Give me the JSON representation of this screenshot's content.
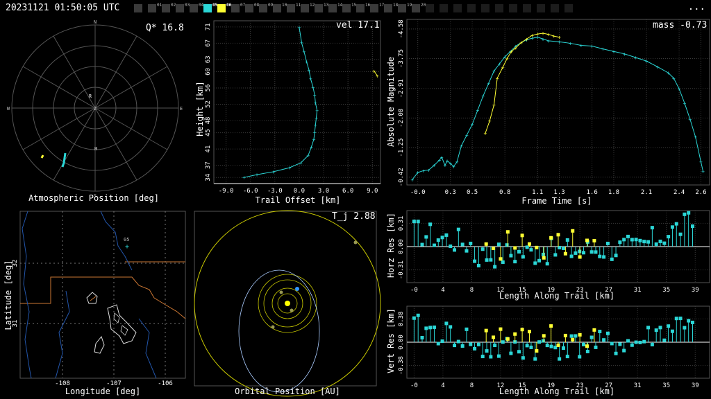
{
  "header": {
    "title": "20231121 01:50:05 UTC",
    "menu_icon": "ellipsis-icon",
    "menu_label": "...",
    "cameras": [
      {
        "id": "",
        "state": "gray"
      },
      {
        "id": "01",
        "state": "gray"
      },
      {
        "id": "02",
        "state": "gray"
      },
      {
        "id": "03",
        "state": "gray"
      },
      {
        "id": "04",
        "state": "gray"
      },
      {
        "id": "05",
        "state": "cyan"
      },
      {
        "id": "06",
        "state": "yellow"
      },
      {
        "id": "07",
        "state": "gray"
      },
      {
        "id": "08",
        "state": "gray"
      },
      {
        "id": "09",
        "state": "gray"
      },
      {
        "id": "10",
        "state": "gray"
      },
      {
        "id": "11",
        "state": "gray"
      },
      {
        "id": "12",
        "state": "gray"
      },
      {
        "id": "13",
        "state": "gray"
      },
      {
        "id": "14",
        "state": "gray"
      },
      {
        "id": "15",
        "state": "gray"
      },
      {
        "id": "16",
        "state": "gray"
      },
      {
        "id": "17",
        "state": "gray"
      },
      {
        "id": "18",
        "state": "gray"
      },
      {
        "id": "19",
        "state": "gray"
      },
      {
        "id": "20",
        "state": "gray"
      },
      {
        "id": "",
        "state": "dark"
      },
      {
        "id": "",
        "state": "dark"
      },
      {
        "id": "",
        "state": "dark"
      },
      {
        "id": "",
        "state": "dark"
      },
      {
        "id": "",
        "state": "dark"
      },
      {
        "id": "",
        "state": "dark"
      },
      {
        "id": "",
        "state": "dark"
      },
      {
        "id": "",
        "state": "dark"
      },
      {
        "id": "",
        "state": "dark"
      },
      {
        "id": "",
        "state": "dark"
      },
      {
        "id": "",
        "state": "dark"
      }
    ]
  },
  "colors": {
    "cyan": "#2bd6d6",
    "yellow": "#ffff33",
    "grid": "#444444",
    "orbit": "#c8c800",
    "blue": "#3399ff",
    "orange": "#cc7733"
  },
  "chart_data": [
    {
      "type": "scatter",
      "name": "atmospheric-position",
      "xlabel": "Atmospheric Position [deg]",
      "value_label": "Q* 16.8",
      "compass": [
        "N",
        "E",
        "S",
        "W",
        "Z"
      ],
      "markers": [
        "R",
        "H"
      ]
    },
    {
      "type": "line",
      "name": "trail",
      "value_label": "vel 17.1",
      "xlabel": "Trail Offset [km]",
      "ylabel": "Height [km]",
      "xticks": [
        "-9.0",
        "-6.0",
        "-3.0",
        "0.0",
        "3.0",
        "6.0",
        "9.0"
      ],
      "yticks": [
        "34",
        "37",
        "41",
        "45",
        "48",
        "52",
        "56",
        "60",
        "63",
        "67",
        "71"
      ],
      "xlim": [
        -10.5,
        10.0
      ],
      "ylim": [
        32.5,
        72.5
      ],
      "series": [
        {
          "color": "cyan",
          "x": [
            -6.8,
            -5.2,
            -3.2,
            -1.2,
            0.2,
            1.1,
            1.5,
            1.8,
            1.9,
            2.0,
            2.1,
            2.2,
            2.0,
            1.9,
            1.7,
            1.4,
            1.2,
            0.9,
            0.6,
            0.3,
            0.0
          ],
          "y": [
            34.0,
            34.7,
            35.4,
            36.4,
            37.6,
            39.4,
            41.5,
            43.4,
            45.1,
            46.9,
            48.7,
            50.5,
            52.3,
            54.3,
            56.2,
            58.3,
            60.4,
            62.5,
            64.9,
            67.1,
            70.9
          ]
        },
        {
          "color": "yellow",
          "x": [
            9.2,
            9.6
          ],
          "y": [
            60.2,
            59.0
          ]
        }
      ]
    },
    {
      "type": "line",
      "name": "light-curve",
      "value_label": "mass -0.73",
      "xlabel": "Frame Time [s]",
      "ylabel": "Absolute Magnitude",
      "xticks": [
        "-0.0",
        "0.3",
        "0.5",
        "0.8",
        "1.1",
        "1.3",
        "1.6",
        "1.8",
        "2.1",
        "2.4",
        "2.6"
      ],
      "yticks": [
        "-4.58",
        "-3.75",
        "-2.91",
        "-2.08",
        "-1.25",
        "-0.42"
      ],
      "xlim": [
        -0.1,
        2.68
      ],
      "ylim": [
        -0.2,
        -4.85
      ],
      "series": [
        {
          "color": "cyan",
          "x": [
            -0.05,
            0.0,
            0.05,
            0.1,
            0.15,
            0.2,
            0.22,
            0.25,
            0.27,
            0.3,
            0.33,
            0.36,
            0.4,
            0.45,
            0.5,
            0.55,
            0.6,
            0.65,
            0.7,
            0.75,
            0.8,
            0.85,
            0.9,
            0.95,
            1.0,
            1.05,
            1.1,
            1.15,
            1.2,
            1.3,
            1.4,
            1.5,
            1.6,
            1.7,
            1.8,
            1.9,
            2.0,
            2.1,
            2.2,
            2.3,
            2.35,
            2.4,
            2.45,
            2.5,
            2.55,
            2.6,
            2.62
          ],
          "y": [
            -0.35,
            -0.55,
            -0.6,
            -0.62,
            -0.75,
            -0.9,
            -0.98,
            -0.75,
            -0.88,
            -0.8,
            -0.72,
            -0.85,
            -1.3,
            -1.6,
            -1.9,
            -2.3,
            -2.7,
            -3.05,
            -3.4,
            -3.6,
            -3.8,
            -3.95,
            -4.1,
            -4.2,
            -4.28,
            -4.32,
            -4.35,
            -4.3,
            -4.25,
            -4.22,
            -4.18,
            -4.12,
            -4.1,
            -4.02,
            -3.95,
            -3.88,
            -3.78,
            -3.68,
            -3.52,
            -3.35,
            -3.2,
            -2.9,
            -2.5,
            -2.05,
            -1.55,
            -0.85,
            -0.58
          ]
        },
        {
          "color": "yellow",
          "x": [
            0.62,
            0.66,
            0.7,
            0.73,
            0.78,
            0.82,
            0.86,
            0.9,
            0.95,
            1.0,
            1.05,
            1.1,
            1.15,
            1.2,
            1.25,
            1.3
          ],
          "y": [
            -1.65,
            -2.0,
            -2.45,
            -3.2,
            -3.5,
            -3.75,
            -3.95,
            -4.05,
            -4.2,
            -4.3,
            -4.4,
            -4.44,
            -4.46,
            -4.43,
            -4.38,
            -4.35
          ]
        }
      ]
    },
    {
      "type": "scatter",
      "name": "ground-track",
      "xlabel": "Longitude [deg]",
      "ylabel": "Latitude [deg]",
      "xticks": [
        "-108",
        "-107",
        "-106"
      ],
      "yticks": [
        "31",
        "32"
      ],
      "station": "05"
    },
    {
      "type": "scatter",
      "name": "orbit",
      "xlabel": "Orbital Position [AU]",
      "value_label": "T_j 2.88"
    },
    {
      "type": "bar",
      "name": "horizontal-residuals",
      "xlabel": "Length Along Trail [km]",
      "ylabel": "Horz Res [km]",
      "xticks": [
        "-0",
        "4",
        "8",
        "12",
        "15",
        "19",
        "23",
        "27",
        "31",
        "35",
        "39"
      ],
      "yticks": [
        "0.31",
        "0.00",
        "-0.31"
      ],
      "xlim": [
        -1,
        41
      ],
      "ylim": [
        -0.48,
        0.48
      ]
    },
    {
      "type": "bar",
      "name": "vertical-residuals",
      "xlabel": "Length Along Trail [km]",
      "ylabel": "Vert Res [km]",
      "xticks": [
        "-0",
        "4",
        "8",
        "12",
        "15",
        "19",
        "23",
        "27",
        "31",
        "35",
        "39"
      ],
      "yticks": [
        "0.38",
        "0.00",
        "-0.38"
      ],
      "xlim": [
        -1,
        41
      ],
      "ylim": [
        -0.48,
        0.48
      ]
    }
  ]
}
